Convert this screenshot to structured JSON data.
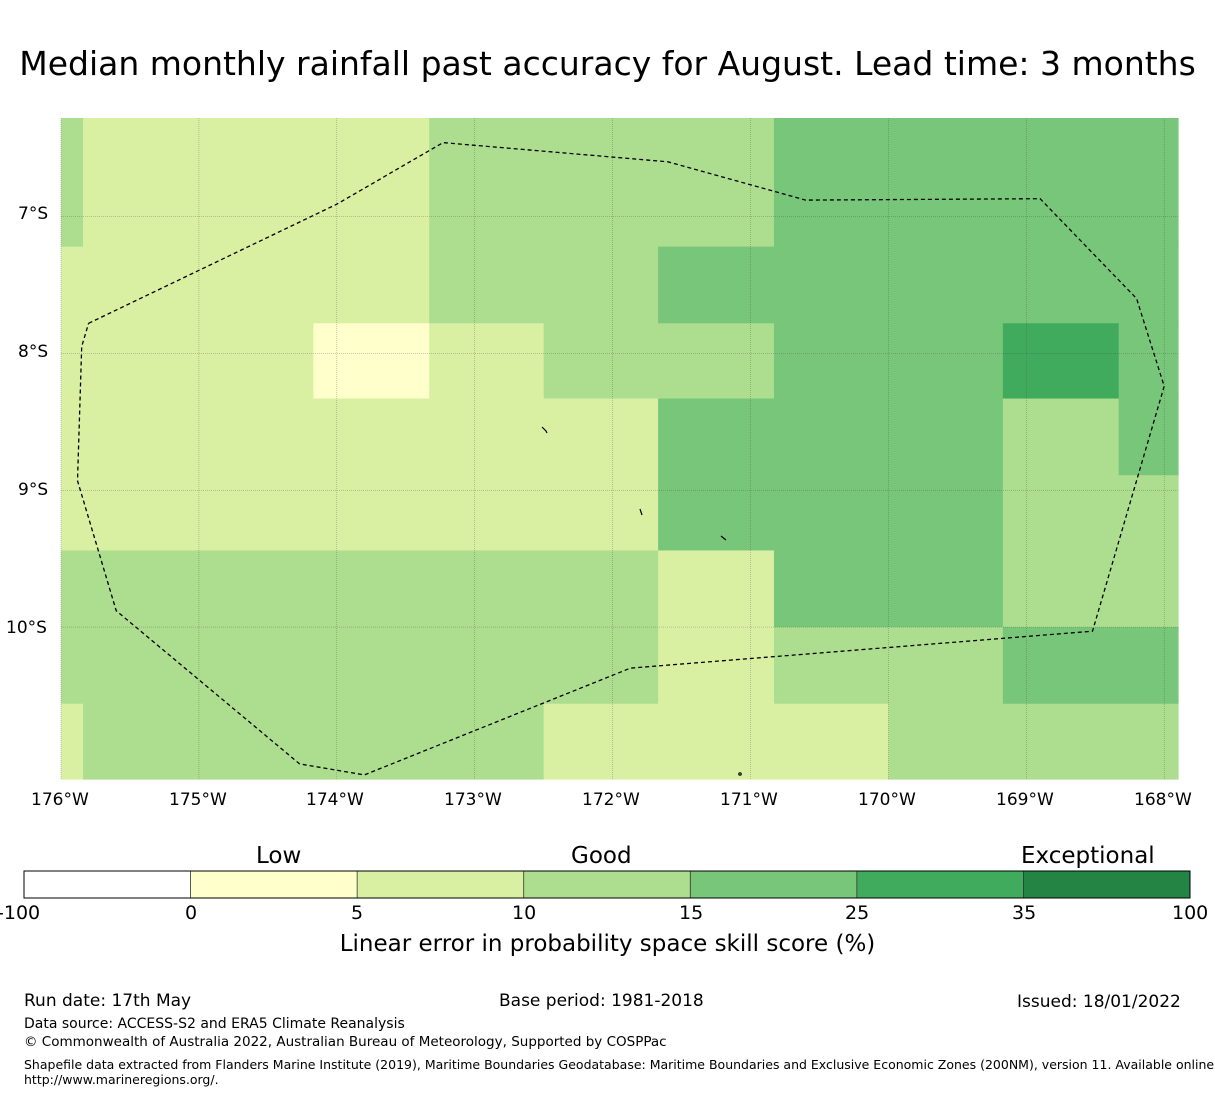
{
  "title": "Median monthly rainfall past accuracy for August. Lead time: 3 months",
  "colors": {
    "bin0": "#ffffff",
    "bin1": "#ffffcc",
    "bin2": "#d9f0a3",
    "bin3": "#addd8e",
    "bin4": "#78c679",
    "bin5": "#41ab5d",
    "bin6": "#238443",
    "outline": "#000000",
    "grid": "#444444"
  },
  "map": {
    "lon_labels": [
      "176°W",
      "175°W",
      "174°W",
      "173°W",
      "172°W",
      "171°W",
      "170°W",
      "169°W",
      "168°W"
    ],
    "lat_labels": [
      "7°S",
      "8°S",
      "9°S",
      "10°S"
    ],
    "grid_columns_lon": [
      -176,
      -175.84,
      -174.17,
      -173.33,
      -172.5,
      -171.67,
      -170.83,
      -170,
      -169.17,
      -168.33,
      -167.9
    ],
    "grid_rows_lat": [
      -6.28,
      -7.22,
      -7.78,
      -8.33,
      -8.89,
      -9.44,
      -10.0,
      -10.56,
      -11.11
    ],
    "skill_classes": [
      [
        3,
        2,
        2,
        3,
        3,
        3,
        4,
        4,
        4,
        4
      ],
      [
        2,
        2,
        2,
        3,
        3,
        4,
        4,
        4,
        4,
        4
      ],
      [
        2,
        2,
        1,
        2,
        3,
        3,
        4,
        4,
        5,
        4
      ],
      [
        2,
        2,
        2,
        2,
        2,
        4,
        4,
        4,
        3,
        4
      ],
      [
        2,
        2,
        2,
        2,
        2,
        4,
        4,
        4,
        3,
        3
      ],
      [
        3,
        3,
        3,
        3,
        3,
        2,
        4,
        4,
        3,
        3
      ],
      [
        3,
        3,
        3,
        3,
        3,
        2,
        3,
        3,
        4,
        4
      ],
      [
        2,
        3,
        3,
        3,
        2,
        2,
        2,
        3,
        3,
        3
      ]
    ],
    "eez_boundary": [
      [
        -175.8,
        -7.78
      ],
      [
        -174.0,
        -6.91
      ],
      [
        -173.23,
        -6.46
      ],
      [
        -171.6,
        -6.6
      ],
      [
        -170.6,
        -6.88
      ],
      [
        -168.9,
        -6.87
      ],
      [
        -168.2,
        -7.6
      ],
      [
        -168.0,
        -8.24
      ],
      [
        -168.52,
        -10.03
      ],
      [
        -171.87,
        -10.3
      ],
      [
        -173.8,
        -11.08
      ],
      [
        -174.27,
        -11.0
      ],
      [
        -175.6,
        -9.88
      ],
      [
        -175.88,
        -8.93
      ],
      [
        -175.85,
        -7.95
      ],
      [
        -175.8,
        -7.78
      ]
    ]
  },
  "legend": {
    "categories": [
      "Low",
      "Good",
      "Exceptional"
    ],
    "ticks": [
      "-100",
      "0",
      "5",
      "10",
      "15",
      "25",
      "35",
      "100"
    ],
    "title": "Linear error in probability space skill score (%)"
  },
  "footer": {
    "run_date": "Run date: 17th May",
    "base_period": "Base period: 1981-2018",
    "issued": "Issued: 18/01/2022",
    "data_source": "Data source: ACCESS-S2 and ERA5 Climate Reanalysis",
    "copyright": "© Commonwealth of Australia 2022, Australian Bureau of Meteorology, Supported by COSPPac",
    "shapefile_line1": "Shapefile data extracted from Flanders Marine Institute (2019), Maritime Boundaries Geodatabase: Maritime Boundaries and Exclusive Economic Zones (200NM), version 11. Available online at",
    "shapefile_line2": "http://www.marineregions.org/."
  }
}
